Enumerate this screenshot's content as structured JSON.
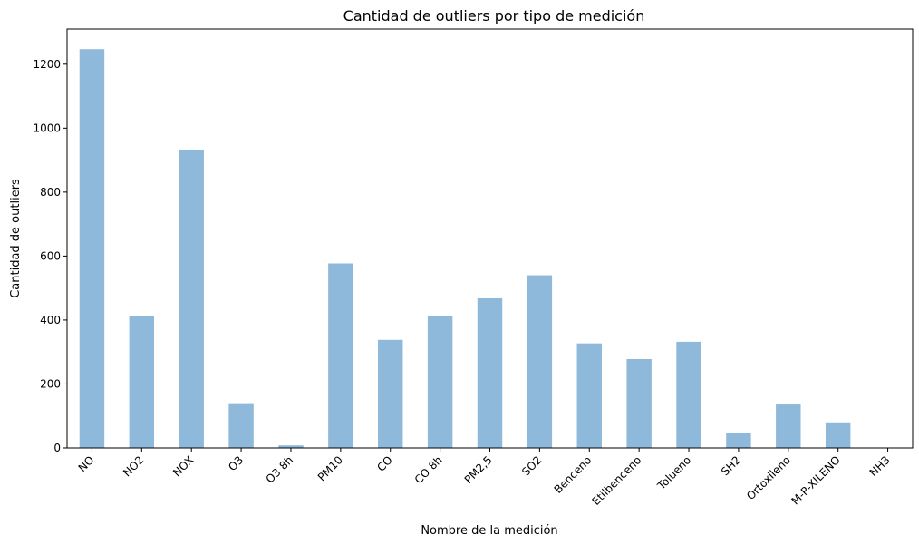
{
  "chart_data": {
    "type": "bar",
    "title": "Cantidad de outliers por tipo de medición",
    "xlabel": "Nombre de la medición",
    "ylabel": "Cantidad de outliers",
    "categories": [
      "NO",
      "NO2",
      "NOX",
      "O3",
      "O3 8h",
      "PM10",
      "CO",
      "CO 8h",
      "PM2,5",
      "SO2",
      "Benceno",
      "Etilbenceno",
      "Tolueno",
      "SH2",
      "Ortoxileno",
      "M-P-XILENO",
      "NH3"
    ],
    "values": [
      1247,
      412,
      933,
      140,
      8,
      577,
      338,
      414,
      468,
      540,
      327,
      278,
      332,
      48,
      136,
      80,
      0
    ],
    "yticks": [
      0,
      200,
      400,
      600,
      800,
      1000,
      1200
    ],
    "ylim": [
      0,
      1310
    ],
    "bar_color": "#8fb9da",
    "grid": false,
    "legend": "none"
  }
}
